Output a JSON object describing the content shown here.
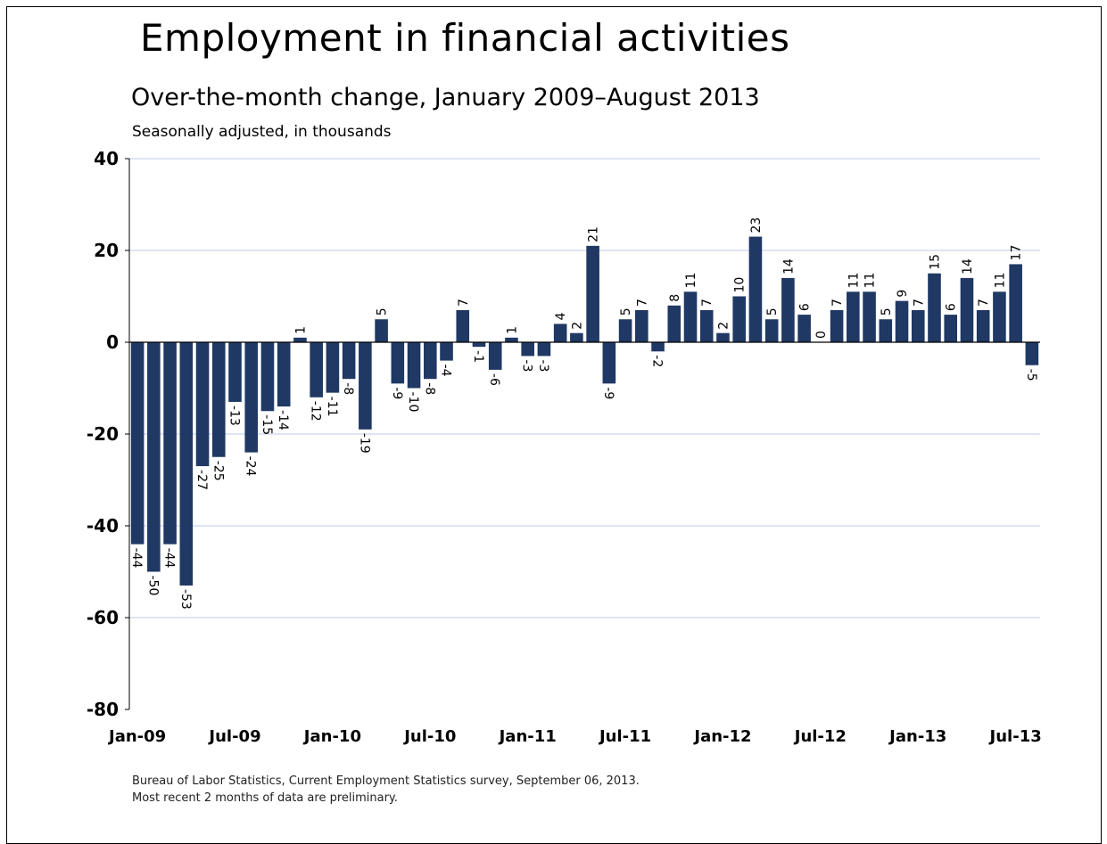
{
  "chart_data": {
    "type": "bar",
    "title": "Employment in financial activities",
    "subtitle": "Over-the-month change, January 2009–August 2013",
    "units_note": "Seasonally adjusted, in thousands",
    "ylim": [
      -80,
      40
    ],
    "yticks": [
      40,
      20,
      0,
      -20,
      -40,
      -60,
      -80
    ],
    "grid": true,
    "x_tick_labels": [
      {
        "index": 0,
        "label": "Jan-09"
      },
      {
        "index": 6,
        "label": "Jul-09"
      },
      {
        "index": 12,
        "label": "Jan-10"
      },
      {
        "index": 18,
        "label": "Jul-10"
      },
      {
        "index": 24,
        "label": "Jan-11"
      },
      {
        "index": 30,
        "label": "Jul-11"
      },
      {
        "index": 36,
        "label": "Jan-12"
      },
      {
        "index": 42,
        "label": "Jul-12"
      },
      {
        "index": 48,
        "label": "Jan-13"
      },
      {
        "index": 54,
        "label": "Jul-13"
      }
    ],
    "values": [
      -44,
      -50,
      -44,
      -53,
      -27,
      -25,
      -13,
      -24,
      -15,
      -14,
      1,
      -12,
      -11,
      -8,
      -19,
      5,
      -9,
      -10,
      -8,
      -4,
      7,
      -1,
      -6,
      1,
      -3,
      -3,
      4,
      2,
      21,
      -9,
      5,
      7,
      -2,
      8,
      11,
      7,
      2,
      10,
      23,
      5,
      14,
      6,
      0,
      7,
      11,
      11,
      5,
      9,
      7,
      15,
      6,
      14,
      7,
      11,
      17,
      -5
    ],
    "bar_color": "#1f3864"
  },
  "source_line1": "Bureau of Labor Statistics, Current Employment Statistics survey, September 06, 2013.",
  "source_line2": "Most recent 2 months of data are preliminary."
}
